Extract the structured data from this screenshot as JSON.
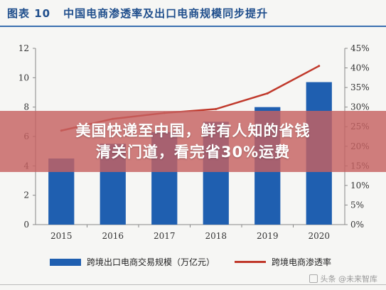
{
  "header": {
    "figure_label": "图表 10",
    "title": "中国电商渗透率及出口电商规模同步提升"
  },
  "overlay": {
    "line1": "美国快递至中国，鲜有人知的省钱",
    "line2": "清关门道，看完省30%运费"
  },
  "legend": {
    "bar_label": "跨境出口电商交易规模（万亿元）",
    "line_label": "跨境电商渗透率"
  },
  "watermark": {
    "text": "头条 @未来智库",
    "icon": "toutiao-icon"
  },
  "chart_data": {
    "type": "bar",
    "categories": [
      "2015",
      "2016",
      "2017",
      "2018",
      "2019",
      "2020"
    ],
    "series": [
      {
        "name": "跨境出口电商交易规模（万亿元）",
        "kind": "bar",
        "axis": "left",
        "color": "#1f5fb0",
        "values": [
          4.5,
          5.5,
          6.3,
          7.0,
          8.0,
          9.7
        ]
      },
      {
        "name": "跨境电商渗透率",
        "kind": "line",
        "axis": "right",
        "color": "#c0392b",
        "values": [
          0.24,
          0.27,
          0.285,
          0.295,
          0.335,
          0.405
        ]
      }
    ],
    "left_axis": {
      "min": 0,
      "max": 12,
      "ticks": [
        "0",
        "2",
        "4",
        "6",
        "8",
        "10",
        "12"
      ]
    },
    "right_axis": {
      "min": 0,
      "max": 0.45,
      "ticks": [
        "0%",
        "5%",
        "10%",
        "15%",
        "20%",
        "25%",
        "30%",
        "35%",
        "40%",
        "45%"
      ]
    },
    "grid": false,
    "legend_position": "bottom"
  }
}
